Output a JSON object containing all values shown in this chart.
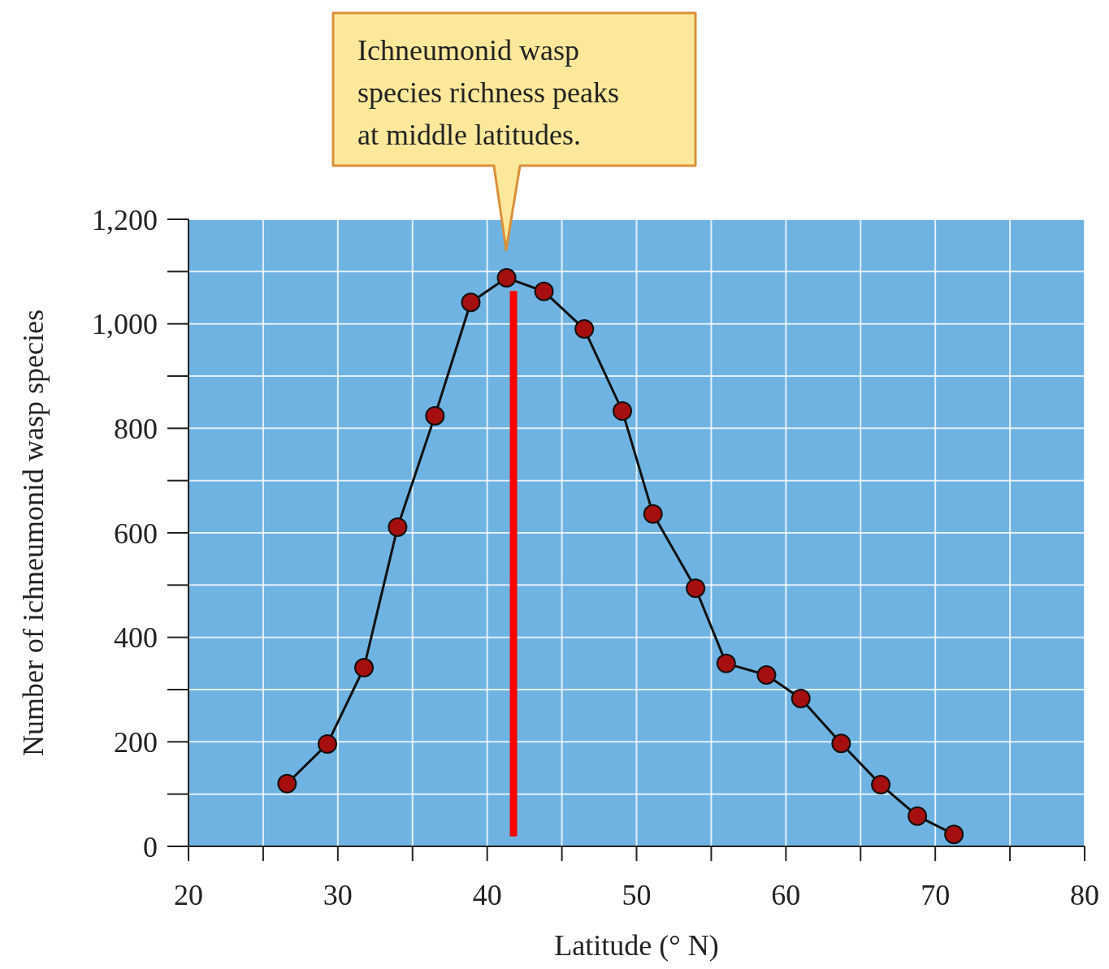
{
  "chart_data": {
    "type": "line",
    "xlabel": "Latitude (° N)",
    "ylabel": "Number of ichneumonid wasp species",
    "xlim": [
      20,
      80
    ],
    "ylim": [
      0,
      1200
    ],
    "xticks": [
      20,
      {
        "value": 25,
        "label": null
      },
      30,
      {
        "value": 35,
        "label": null
      },
      40,
      {
        "value": 45,
        "label": null
      },
      50,
      {
        "value": 55,
        "label": null
      },
      60,
      {
        "value": 65,
        "label": null
      },
      70,
      {
        "value": 75,
        "label": null
      },
      80
    ],
    "yticks": [
      0,
      {
        "value": 100,
        "label": null
      },
      200,
      {
        "value": 300,
        "label": null
      },
      400,
      {
        "value": 500,
        "label": null
      },
      600,
      {
        "value": 700,
        "label": null
      },
      800,
      {
        "value": 900,
        "label": null
      },
      {
        "value": 1000,
        "label": "1,000"
      },
      {
        "value": 1100,
        "label": null
      },
      {
        "value": 1200,
        "label": "1,200"
      }
    ],
    "grid": true,
    "series": [
      {
        "color": "#a50f0f",
        "marker": "circle",
        "line_style": "solid",
        "x": [
          26.6,
          29.3,
          31.75,
          34.0,
          36.5,
          38.9,
          41.3,
          43.8,
          46.5,
          49.05,
          51.1,
          53.95,
          56.0,
          58.7,
          61.0,
          63.7,
          66.35,
          68.8,
          71.25
        ],
        "values": [
          120,
          196,
          342,
          611,
          824,
          1041,
          1088,
          1062,
          990,
          833,
          636,
          494,
          350,
          328,
          283,
          197,
          118,
          58,
          23
        ]
      },
      {
        "color": "#ff0000",
        "marker": "none",
        "line_style": "solid",
        "x": [
          41.76,
          41.76
        ],
        "values": [
          19,
          1063
        ]
      }
    ],
    "annotations": [
      "Ichneumonid wasp species richness peaks at middle latitudes."
    ]
  }
}
